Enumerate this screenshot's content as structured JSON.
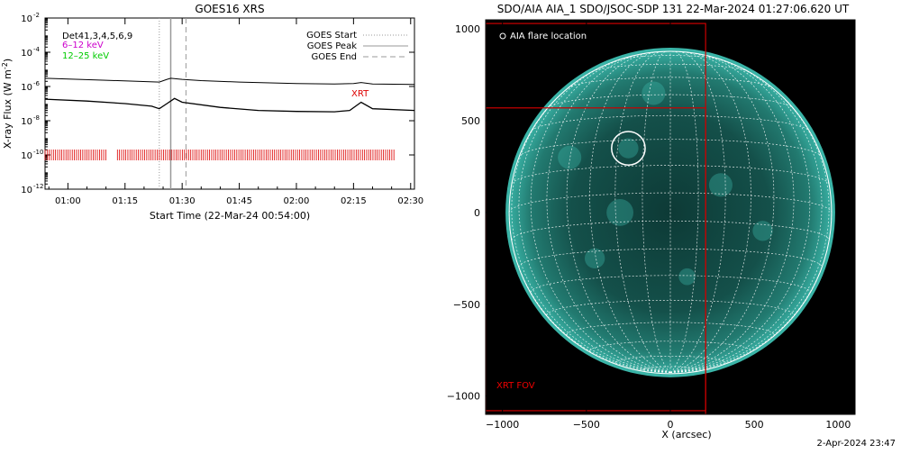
{
  "goes": {
    "title": "GOES16 XRS",
    "ylabel_main": "X-ray Flux (W m",
    "ylabel_sup": "-2",
    "ylabel_end": ")",
    "xlabel": "Start Time (22-Mar-24 00:54:00)",
    "annotations": {
      "det_line": "Det41,3,4,5,6,9",
      "band1": "6–12 keV",
      "band2": "12–25 keV",
      "xrt_label": "XRT"
    },
    "legend": [
      {
        "label": "GOES Start",
        "style": "dotted"
      },
      {
        "label": "GOES Peak",
        "style": "solid"
      },
      {
        "label": "GOES End",
        "style": "dashed"
      }
    ],
    "colors": {
      "band1": "#cc00cc",
      "band2": "#00cc00",
      "xrt": "#dd0000",
      "marker": "#999999"
    }
  },
  "aia": {
    "title": "SDO/AIA AIA_1 SDO/JSOC-SDP 131 22-Mar-2024 01:27:06.620 UT",
    "xlabel": "X (arcsec)",
    "legend_label": "AIA flare location",
    "fov_label": "XRT FOV",
    "colors": {
      "disk": "#2aa59c",
      "fov": "#cc0000",
      "grid": "#ffffff"
    }
  },
  "footer_date": "2-Apr-2024 23:47",
  "chart_data": [
    {
      "type": "line",
      "title": "GOES16 XRS",
      "xlabel": "Start Time (22-Mar-24 00:54:00)",
      "ylabel": "X-ray Flux (W m^-2)",
      "yscale": "log",
      "ylim": [
        1e-12,
        0.01
      ],
      "xlim": [
        "00:54",
        "02:31"
      ],
      "x_ticks": [
        "01:00",
        "01:15",
        "01:30",
        "01:45",
        "02:00",
        "02:15",
        "02:30"
      ],
      "y_ticks": [
        "10^-12",
        "10^-10",
        "10^-8",
        "10^-6",
        "10^-4",
        "10^-2"
      ],
      "markers": {
        "goes_start": "01:24",
        "goes_peak": "01:27",
        "goes_end": "01:31"
      },
      "series": [
        {
          "name": "6–12 keV",
          "x": [
            "00:54",
            "01:10",
            "01:24",
            "01:26",
            "01:27",
            "01:30",
            "01:35",
            "01:45",
            "02:00",
            "02:10",
            "02:15",
            "02:17",
            "02:20",
            "02:31"
          ],
          "y": [
            3e-06,
            2.3e-06,
            1.8e-06,
            2.6e-06,
            3e-06,
            2.6e-06,
            2.2e-06,
            1.8e-06,
            1.5e-06,
            1.4e-06,
            1.5e-06,
            1.7e-06,
            1.4e-06,
            1.3e-06
          ]
        },
        {
          "name": "12–25 keV",
          "x": [
            "00:54",
            "01:05",
            "01:15",
            "01:22",
            "01:24",
            "01:26",
            "01:28",
            "01:30",
            "01:40",
            "01:50",
            "02:00",
            "02:10",
            "02:14",
            "02:17",
            "02:20",
            "02:31"
          ],
          "y": [
            1.8e-07,
            1.4e-07,
            1e-07,
            7e-08,
            5e-08,
            1e-07,
            2e-07,
            1.2e-07,
            6e-08,
            4e-08,
            3.5e-08,
            3.3e-08,
            4e-08,
            1.2e-07,
            5e-08,
            4e-08
          ]
        }
      ],
      "xrt_observations": {
        "level": 1e-10,
        "intervals": [
          [
            "00:54",
            "01:10"
          ],
          [
            "01:13",
            "02:26"
          ]
        ]
      }
    },
    {
      "type": "image",
      "title": "SDO/AIA AIA_1 SDO/JSOC-SDP 131 22-Mar-2024 01:27:06.620 UT",
      "xlabel": "X (arcsec)",
      "ylabel": "",
      "xlim": [
        -1100,
        1100
      ],
      "ylim": [
        -1100,
        1050
      ],
      "x_ticks": [
        -1000,
        -500,
        0,
        500,
        1000
      ],
      "y_ticks": [
        -1000,
        -500,
        0,
        500,
        1000
      ],
      "solar_radius_arcsec": 960,
      "flare_location": {
        "x": -250,
        "y": 350,
        "radius": 100
      },
      "xrt_fov": [
        {
          "x": [
            -1100,
            210
          ],
          "y": [
            -1100,
            1030
          ]
        },
        {
          "x": [
            -1100,
            210
          ],
          "y": [
            -1080,
            570
          ]
        }
      ]
    }
  ]
}
